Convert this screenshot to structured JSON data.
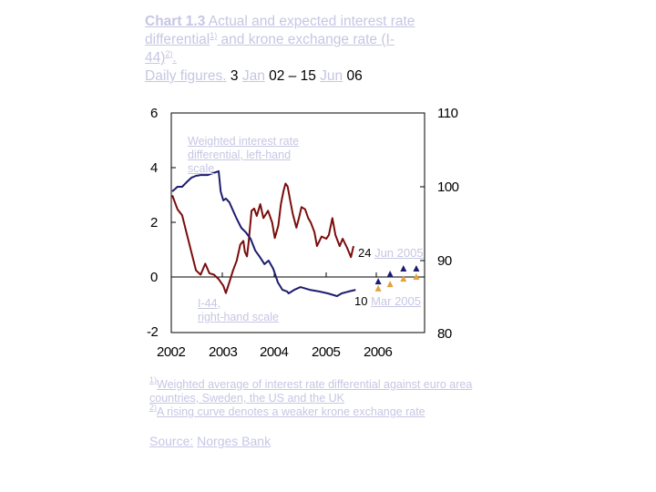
{
  "title": {
    "chart_number": "Chart 1.3",
    "line1_rest": " Actual and expected interest rate",
    "line2": "differential",
    "line2_sup": "1)",
    "line2_rest": " and krone exchange rate (I-",
    "line3": "44)",
    "line3_sup": "2)",
    "line3_rest": ".",
    "line4_a": "Daily figures.",
    "line4_b": " 3 ",
    "line4_c": "Jan",
    "line4_d": " 02 – 15 ",
    "line4_e": "Jun",
    "line4_f": " 06"
  },
  "annotations": {
    "weighted_label": [
      "Weighted interest rate",
      "differential, left-hand",
      "scale"
    ],
    "i44_label": [
      "I-44,",
      "right-hand scale"
    ],
    "date1_num": "24 ",
    "date1_month": "Jun 2005",
    "date2_num": "10 ",
    "date2_month": "Mar 2005"
  },
  "notes": {
    "note1_sup": "1)",
    "note1": "Weighted average of interest rate differential against euro area countries, Sweden, the US and the UK",
    "note2_sup": "2)",
    "note2": "A rising curve denotes a weaker krone exchange rate"
  },
  "source": {
    "label": "Source:",
    "name": "Norges Bank"
  },
  "colors": {
    "interest_line": "#1c1c6e",
    "i44_line": "#7a0c0c",
    "expected_navy": "#1c1c6e",
    "expected_orange": "#e3a23a",
    "link_text": "#c6c6e4"
  },
  "chart_data": {
    "type": "line",
    "title": "Actual and expected interest rate differential and krone exchange rate (I-44). Daily figures. 3 Jan 02 – 15 Jun 06",
    "xlabel": "",
    "ylabel_left": "",
    "ylabel_right": "",
    "x_ticks": [
      "2002",
      "2003",
      "2004",
      "2005",
      "2006"
    ],
    "xlim": [
      2002.0,
      2006.92
    ],
    "ylim_left": [
      -2,
      6
    ],
    "ylim_right": [
      80,
      110
    ],
    "y_ticks_left": [
      "6",
      "4",
      "2",
      "0",
      "-2"
    ],
    "y_ticks_right": [
      "110",
      "100",
      "90",
      "80"
    ],
    "grid": false,
    "series": [
      {
        "name": "Weighted interest rate differential, left-hand scale",
        "axis": "left",
        "color": "#1c1c6e",
        "points": [
          [
            2002.02,
            3.13
          ],
          [
            2002.12,
            3.3
          ],
          [
            2002.21,
            3.3
          ],
          [
            2002.3,
            3.47
          ],
          [
            2002.39,
            3.63
          ],
          [
            2002.48,
            3.7
          ],
          [
            2002.57,
            3.73
          ],
          [
            2002.66,
            3.73
          ],
          [
            2002.71,
            3.73
          ],
          [
            2002.92,
            3.87
          ],
          [
            2002.96,
            3.13
          ],
          [
            2003.01,
            2.8
          ],
          [
            2003.06,
            2.87
          ],
          [
            2003.13,
            2.73
          ],
          [
            2003.19,
            2.47
          ],
          [
            2003.27,
            2.13
          ],
          [
            2003.36,
            1.8
          ],
          [
            2003.45,
            1.63
          ],
          [
            2003.54,
            1.4
          ],
          [
            2003.63,
            0.97
          ],
          [
            2003.72,
            0.73
          ],
          [
            2003.81,
            0.47
          ],
          [
            2003.89,
            0.6
          ],
          [
            2003.98,
            0.3
          ],
          [
            2004.07,
            -0.2
          ],
          [
            2004.16,
            -0.47
          ],
          [
            2004.25,
            -0.53
          ],
          [
            2004.28,
            -0.6
          ],
          [
            2004.39,
            -0.47
          ],
          [
            2004.51,
            -0.37
          ],
          [
            2004.69,
            -0.47
          ],
          [
            2004.87,
            -0.53
          ],
          [
            2005.04,
            -0.6
          ],
          [
            2005.22,
            -0.7
          ],
          [
            2005.31,
            -0.6
          ],
          [
            2005.45,
            -0.53
          ],
          [
            2005.58,
            -0.47
          ]
        ]
      },
      {
        "name": "I-44, right-hand scale",
        "axis": "right",
        "color": "#7a0c0c",
        "points": [
          [
            2002.02,
            98.8
          ],
          [
            2002.12,
            96.9
          ],
          [
            2002.21,
            96.1
          ],
          [
            2002.3,
            93.6
          ],
          [
            2002.39,
            91.1
          ],
          [
            2002.48,
            88.6
          ],
          [
            2002.57,
            88.0
          ],
          [
            2002.66,
            89.5
          ],
          [
            2002.74,
            88.2
          ],
          [
            2002.83,
            88.0
          ],
          [
            2002.92,
            87.4
          ],
          [
            2003.01,
            86.5
          ],
          [
            2003.06,
            85.5
          ],
          [
            2003.13,
            87.0
          ],
          [
            2003.2,
            88.6
          ],
          [
            2003.27,
            89.9
          ],
          [
            2003.34,
            92.1
          ],
          [
            2003.4,
            92.6
          ],
          [
            2003.43,
            91.1
          ],
          [
            2003.47,
            90.5
          ],
          [
            2003.5,
            92.3
          ],
          [
            2003.56,
            96.7
          ],
          [
            2003.61,
            97.0
          ],
          [
            2003.66,
            96.0
          ],
          [
            2003.73,
            97.6
          ],
          [
            2003.79,
            95.7
          ],
          [
            2003.88,
            96.7
          ],
          [
            2003.96,
            95.1
          ],
          [
            2004.01,
            93.0
          ],
          [
            2004.08,
            94.7
          ],
          [
            2004.13,
            97.6
          ],
          [
            2004.18,
            99.4
          ],
          [
            2004.22,
            100.4
          ],
          [
            2004.26,
            100.0
          ],
          [
            2004.31,
            98.1
          ],
          [
            2004.36,
            96.3
          ],
          [
            2004.43,
            94.4
          ],
          [
            2004.48,
            95.7
          ],
          [
            2004.53,
            97.2
          ],
          [
            2004.6,
            96.9
          ],
          [
            2004.66,
            95.7
          ],
          [
            2004.71,
            95.1
          ],
          [
            2004.78,
            93.8
          ],
          [
            2004.83,
            91.9
          ],
          [
            2004.92,
            93.2
          ],
          [
            2005.01,
            92.9
          ],
          [
            2005.06,
            93.4
          ],
          [
            2005.13,
            95.7
          ],
          [
            2005.19,
            93.4
          ],
          [
            2005.27,
            91.9
          ],
          [
            2005.33,
            92.9
          ],
          [
            2005.42,
            91.6
          ],
          [
            2005.49,
            90.4
          ],
          [
            2005.54,
            91.9
          ]
        ]
      },
      {
        "name": "Expected interest rate differential (24 Jun 2005)",
        "axis": "left",
        "marker": "triangle",
        "color": "#1c1c6e",
        "points": [
          [
            2006.02,
            -0.17
          ],
          [
            2006.25,
            0.1
          ],
          [
            2006.51,
            0.3
          ],
          [
            2006.76,
            0.3
          ]
        ]
      },
      {
        "name": "Expected interest rate differential (10 Mar 2005)",
        "axis": "left",
        "marker": "triangle",
        "color": "#e3a23a",
        "points": [
          [
            2006.02,
            -0.43
          ],
          [
            2006.25,
            -0.27
          ],
          [
            2006.51,
            -0.07
          ],
          [
            2006.76,
            0.0
          ]
        ]
      }
    ],
    "annotations": [
      "Weighted interest rate differential, left-hand scale",
      "I-44, right-hand scale",
      "24 Jun 2005",
      "10 Mar 2005"
    ]
  }
}
